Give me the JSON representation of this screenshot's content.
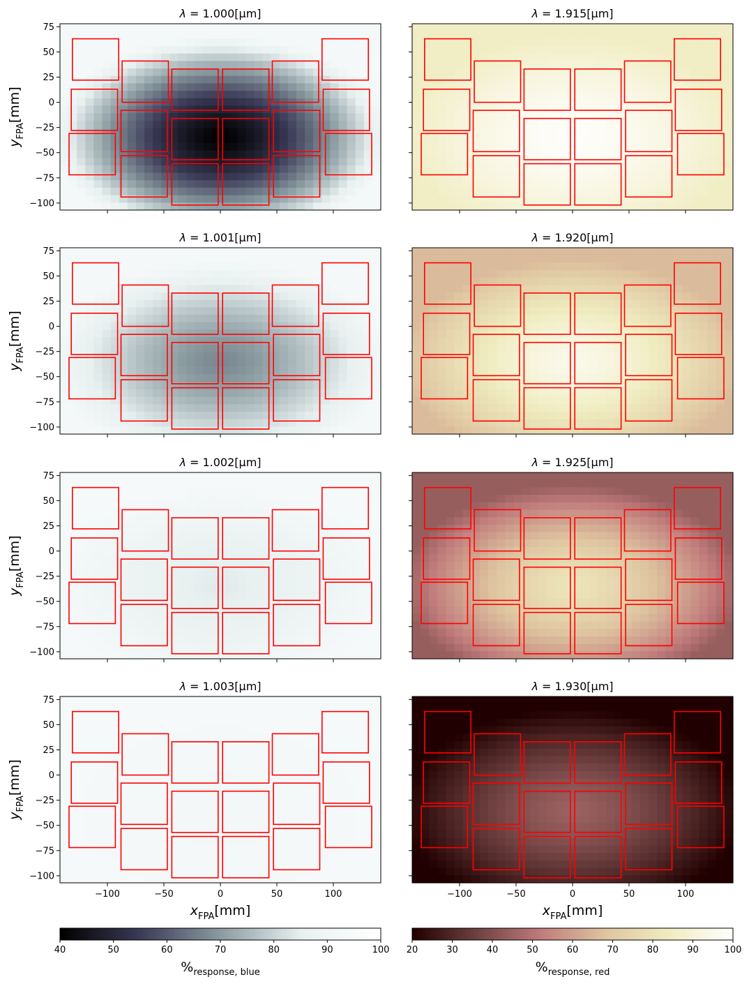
{
  "chart_data": {
    "type": "heatmap",
    "xlabel": "x",
    "xlabel_sub": "FPA",
    "xlabel_unit": "[mm]",
    "ylabel": "y",
    "ylabel_sub": "FPA",
    "ylabel_unit": "[mm]",
    "xlim": [
      -142,
      142
    ],
    "ylim": [
      -107,
      78
    ],
    "x_ticks": [
      -100,
      -50,
      0,
      50,
      100
    ],
    "x_tick_labels": [
      "−100",
      "−50",
      "0",
      "50",
      "100"
    ],
    "y_ticks": [
      75,
      50,
      25,
      0,
      -25,
      -50,
      -75,
      -100
    ],
    "y_tick_labels": [
      "75",
      "50",
      "25",
      "0",
      "−25",
      "−50",
      "−75",
      "−100"
    ],
    "title_prefix": "λ = ",
    "title_unit": "[µm]",
    "panels": [
      {
        "column": "blue",
        "wavelength": "1.000",
        "center_value": 40,
        "edge_value": 93
      },
      {
        "column": "red",
        "wavelength": "1.915",
        "center_value": 99,
        "edge_value": 85
      },
      {
        "column": "blue",
        "wavelength": "1.001",
        "center_value": 67,
        "edge_value": 93
      },
      {
        "column": "red",
        "wavelength": "1.920",
        "center_value": 95,
        "edge_value": 66
      },
      {
        "column": "blue",
        "wavelength": "1.002",
        "center_value": 84,
        "edge_value": 94
      },
      {
        "column": "red",
        "wavelength": "1.925",
        "center_value": 81,
        "edge_value": 44
      },
      {
        "column": "blue",
        "wavelength": "1.003",
        "center_value": 92,
        "edge_value": 94
      },
      {
        "column": "red",
        "wavelength": "1.930",
        "center_value": 45,
        "edge_value": 20
      }
    ],
    "detector_outline_color": "#ff0000",
    "detectors": [
      {
        "x": [
          -131,
          -90
        ],
        "y": [
          22,
          63
        ]
      },
      {
        "x": [
          -132,
          -91
        ],
        "y": [
          -28,
          13
        ]
      },
      {
        "x": [
          -134,
          -93
        ],
        "y": [
          -72,
          -31
        ]
      },
      {
        "x": [
          -87,
          -46
        ],
        "y": [
          0,
          41
        ]
      },
      {
        "x": [
          -88,
          -47
        ],
        "y": [
          -49,
          -8
        ]
      },
      {
        "x": [
          -88,
          -47
        ],
        "y": [
          -94,
          -53
        ]
      },
      {
        "x": [
          -43,
          -2
        ],
        "y": [
          -8,
          33
        ]
      },
      {
        "x": [
          -43,
          -2
        ],
        "y": [
          -57,
          -16
        ]
      },
      {
        "x": [
          -43,
          -2
        ],
        "y": [
          -102,
          -61
        ]
      },
      {
        "x": [
          2,
          43
        ],
        "y": [
          -8,
          33
        ]
      },
      {
        "x": [
          2,
          43
        ],
        "y": [
          -57,
          -16
        ]
      },
      {
        "x": [
          2,
          43
        ],
        "y": [
          -102,
          -61
        ]
      },
      {
        "x": [
          46,
          87
        ],
        "y": [
          0,
          41
        ]
      },
      {
        "x": [
          47,
          88
        ],
        "y": [
          -49,
          -8
        ]
      },
      {
        "x": [
          47,
          88
        ],
        "y": [
          -94,
          -53
        ]
      },
      {
        "x": [
          90,
          131
        ],
        "y": [
          22,
          63
        ]
      },
      {
        "x": [
          91,
          132
        ],
        "y": [
          -28,
          13
        ]
      },
      {
        "x": [
          93,
          134
        ],
        "y": [
          -72,
          -31
        ]
      }
    ],
    "colorbars": [
      {
        "column": "blue",
        "label_main": "%",
        "label_sub": "response, blue",
        "range": [
          40,
          100
        ],
        "ticks": [
          40,
          50,
          60,
          70,
          80,
          90,
          100
        ],
        "colors": [
          "#000000",
          "#3b3a57",
          "#8a9ba0",
          "#e8f0f0",
          "#ffffff"
        ]
      },
      {
        "column": "red",
        "label_main": "%",
        "label_sub": "response, red",
        "range": [
          20,
          100
        ],
        "ticks": [
          20,
          30,
          40,
          50,
          60,
          70,
          80,
          90,
          100
        ],
        "colors": [
          "#200000",
          "#6e4040",
          "#c07b7b",
          "#dec4a0",
          "#f0ecc0",
          "#ffffff"
        ]
      }
    ]
  }
}
